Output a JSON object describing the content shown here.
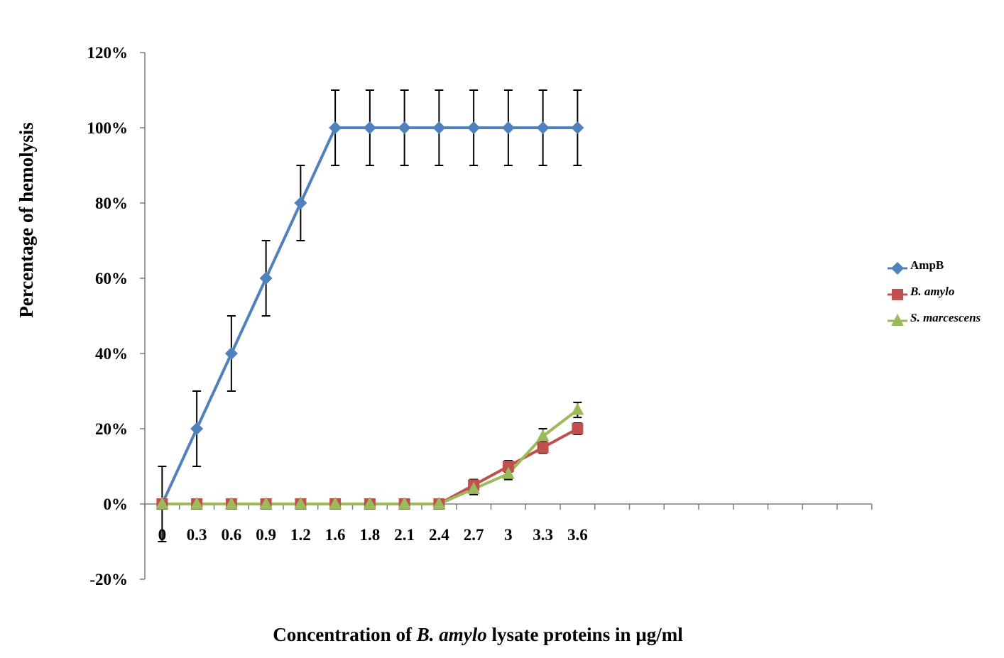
{
  "chart_data": {
    "type": "line",
    "title": "",
    "xlabel_parts": [
      {
        "text": "Concentration of ",
        "italic": false
      },
      {
        "text": "B. amylo",
        "italic": true
      },
      {
        "text": " lysate proteins in µg/ml",
        "italic": false
      }
    ],
    "ylabel": "Percentage of hemolysis",
    "categories": [
      "0",
      "0.3",
      "0.6",
      "0.9",
      "1.2",
      "1.6",
      "1.8",
      "2.1",
      "2.4",
      "2.7",
      "3",
      "3.3",
      "3.6"
    ],
    "ylim": [
      -0.2,
      1.2
    ],
    "ytick_values": [
      -0.2,
      0,
      0.2,
      0.4,
      0.6,
      0.8,
      1.0,
      1.2
    ],
    "ytick_labels": [
      "-20%",
      "0%",
      "20%",
      "40%",
      "60%",
      "80%",
      "100%",
      "120%"
    ],
    "x_slots": 21,
    "grid": false,
    "legend_position": "right",
    "series": [
      {
        "name": "AmpB",
        "italic": false,
        "color": "#4f81bd",
        "marker": "diamond",
        "values": [
          0,
          0.2,
          0.4,
          0.6,
          0.8,
          1.0,
          1.0,
          1.0,
          1.0,
          1.0,
          1.0,
          1.0,
          1.0
        ],
        "error": [
          0.1,
          0.1,
          0.1,
          0.1,
          0.1,
          0.1,
          0.1,
          0.1,
          0.1,
          0.1,
          0.1,
          0.1,
          0.1
        ]
      },
      {
        "name": "B. amylo",
        "italic": true,
        "color": "#c0504d",
        "marker": "square",
        "values": [
          0,
          0,
          0,
          0,
          0,
          0,
          0,
          0,
          0,
          0.05,
          0.1,
          0.15,
          0.2
        ],
        "error": [
          0.01,
          0.01,
          0.01,
          0.01,
          0.01,
          0.01,
          0.01,
          0.01,
          0.01,
          0.015,
          0.015,
          0.015,
          0.015
        ]
      },
      {
        "name": "S. marcescens",
        "italic": true,
        "color": "#9bbb59",
        "marker": "triangle",
        "values": [
          0,
          0,
          0,
          0,
          0,
          0,
          0,
          0,
          0,
          0.04,
          0.08,
          0.18,
          0.25
        ],
        "error": [
          0,
          0,
          0,
          0,
          0,
          0,
          0,
          0,
          0,
          0.015,
          0.015,
          0.02,
          0.02
        ]
      }
    ]
  }
}
